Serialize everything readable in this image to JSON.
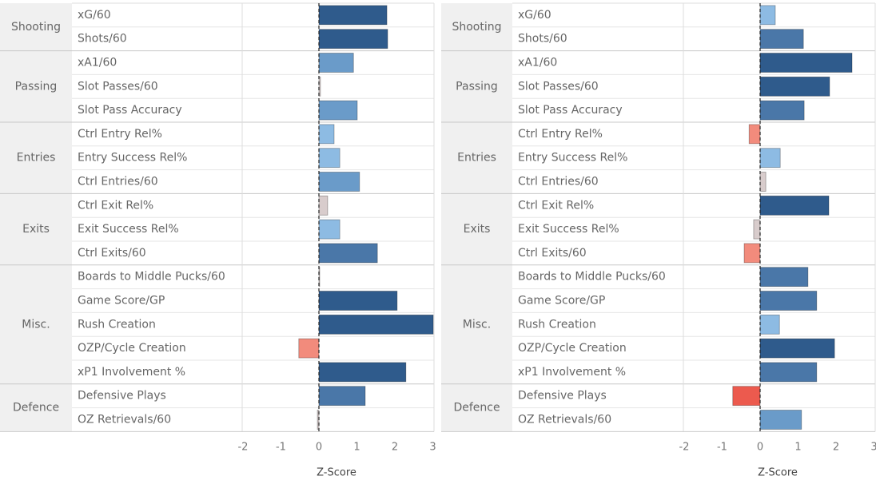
{
  "chart_data": [
    {
      "type": "bar",
      "orientation": "horizontal",
      "xlabel": "Z-Score",
      "xlim": [
        -2.02,
        3.03
      ],
      "xticks": [
        -2,
        -1,
        0,
        1,
        2,
        3
      ],
      "groups": [
        {
          "name": "Shooting",
          "categories": [
            "xG/60",
            "Shots/60"
          ],
          "values": [
            1.79,
            1.81
          ],
          "colors": [
            "#2f5b8c",
            "#2f5b8c"
          ]
        },
        {
          "name": "Passing",
          "categories": [
            "xA1/60",
            "Slot Passes/60",
            "Slot Pass Accuracy"
          ],
          "values": [
            0.91,
            0.04,
            1.01
          ],
          "colors": [
            "#6a9bc9",
            "#d8cccc",
            "#6a9bc9"
          ]
        },
        {
          "name": "Entries",
          "categories": [
            "Ctrl Entry Rel%",
            "Entry Success Rel%",
            "Ctrl Entries/60"
          ],
          "values": [
            0.4,
            0.55,
            1.07
          ],
          "colors": [
            "#8dbbe3",
            "#8dbbe3",
            "#6a9bc9"
          ]
        },
        {
          "name": "Exits",
          "categories": [
            "Ctrl Exit Rel%",
            "Exit Success Rel%",
            "Ctrl Exits/60"
          ],
          "values": [
            0.23,
            0.55,
            1.54
          ],
          "colors": [
            "#d8cccc",
            "#8dbbe3",
            "#4a77a8"
          ]
        },
        {
          "name": "Misc.",
          "categories": [
            "Boards to Middle Pucks/60",
            "Game Score/GP",
            "Rush Creation",
            "OZP/Cycle Creation",
            "xP1 Involvement %"
          ],
          "values": [
            0.02,
            2.06,
            3.01,
            -0.53,
            2.29
          ],
          "colors": [
            "#d8cccc",
            "#2f5b8c",
            "#2f5b8c",
            "#f28b7c",
            "#2f5b8c"
          ]
        },
        {
          "name": "Defence",
          "categories": [
            "Defensive Plays",
            "OZ Retrievals/60"
          ],
          "values": [
            1.22,
            -0.04
          ],
          "colors": [
            "#4a77a8",
            "#d8cccc"
          ]
        }
      ]
    },
    {
      "type": "bar",
      "orientation": "horizontal",
      "xlabel": "Z-Score",
      "xlim": [
        -2.02,
        3.03
      ],
      "xticks": [
        -2,
        -1,
        0,
        1,
        2,
        3
      ],
      "groups": [
        {
          "name": "Shooting",
          "categories": [
            "xG/60",
            "Shots/60"
          ],
          "values": [
            0.4,
            1.14
          ],
          "colors": [
            "#8dbbe3",
            "#4a77a8"
          ]
        },
        {
          "name": "Passing",
          "categories": [
            "xA1/60",
            "Slot Passes/60",
            "Slot Pass Accuracy"
          ],
          "values": [
            2.42,
            1.83,
            1.16
          ],
          "colors": [
            "#2f5b8c",
            "#2f5b8c",
            "#4a77a8"
          ]
        },
        {
          "name": "Entries",
          "categories": [
            "Ctrl Entry Rel%",
            "Entry Success Rel%",
            "Ctrl Entries/60"
          ],
          "values": [
            -0.29,
            0.53,
            0.15
          ],
          "colors": [
            "#f28b7c",
            "#8dbbe3",
            "#d8cccc"
          ]
        },
        {
          "name": "Exits",
          "categories": [
            "Ctrl Exit Rel%",
            "Exit Success Rel%",
            "Ctrl Exits/60"
          ],
          "values": [
            1.81,
            -0.17,
            -0.42
          ],
          "colors": [
            "#2f5b8c",
            "#d8cccc",
            "#f28b7c"
          ]
        },
        {
          "name": "Misc.",
          "categories": [
            "Boards to Middle Pucks/60",
            "Game Score/GP",
            "Rush Creation",
            "OZP/Cycle Creation",
            "xP1 Involvement %"
          ],
          "values": [
            1.26,
            1.49,
            0.51,
            1.96,
            1.49
          ],
          "colors": [
            "#4a77a8",
            "#4a77a8",
            "#8dbbe3",
            "#2f5b8c",
            "#4a77a8"
          ]
        },
        {
          "name": "Defence",
          "categories": [
            "Defensive Plays",
            "OZ Retrievals/60"
          ],
          "values": [
            -0.72,
            1.09
          ],
          "colors": [
            "#ec5a4e",
            "#6a9bc9"
          ]
        }
      ]
    }
  ]
}
